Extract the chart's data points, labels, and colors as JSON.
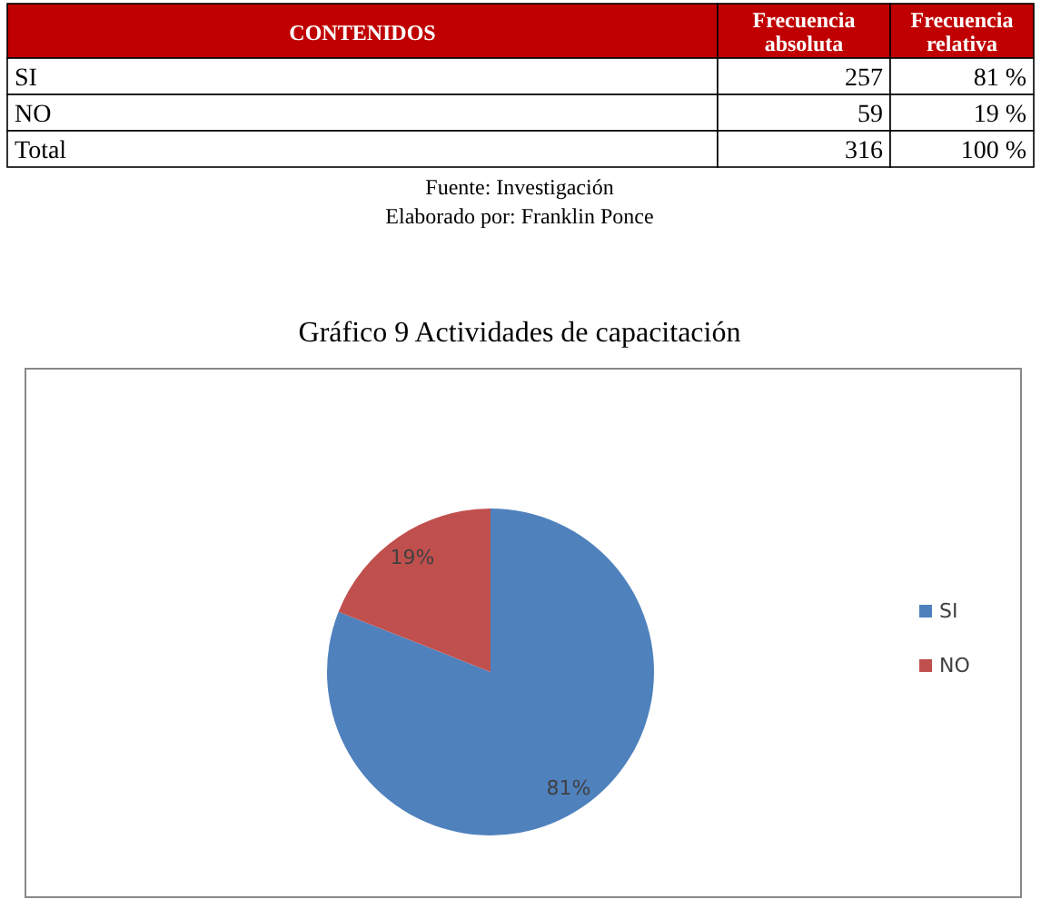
{
  "chart_data": [
    {
      "type": "other",
      "annotations": [
        "CONTENIDOS",
        "Frecuencia absoluta",
        "Frecuencia relativa",
        "SI",
        "257",
        "81 %",
        "NO",
        "59",
        "19 %",
        "Total",
        "316",
        "100 %",
        "Fuente: Investigación",
        "Elaborado por: Franklin Ponce"
      ]
    },
    {
      "type": "pie",
      "title": "Gráfico 9  Actividades de capacitación",
      "categories": [
        "SI",
        "NO"
      ],
      "values": [
        81,
        19
      ],
      "colors": [
        "#4f81bd",
        "#c0504d"
      ],
      "value_labels": [
        "81%",
        "19%"
      ],
      "legend": "right"
    }
  ]
}
